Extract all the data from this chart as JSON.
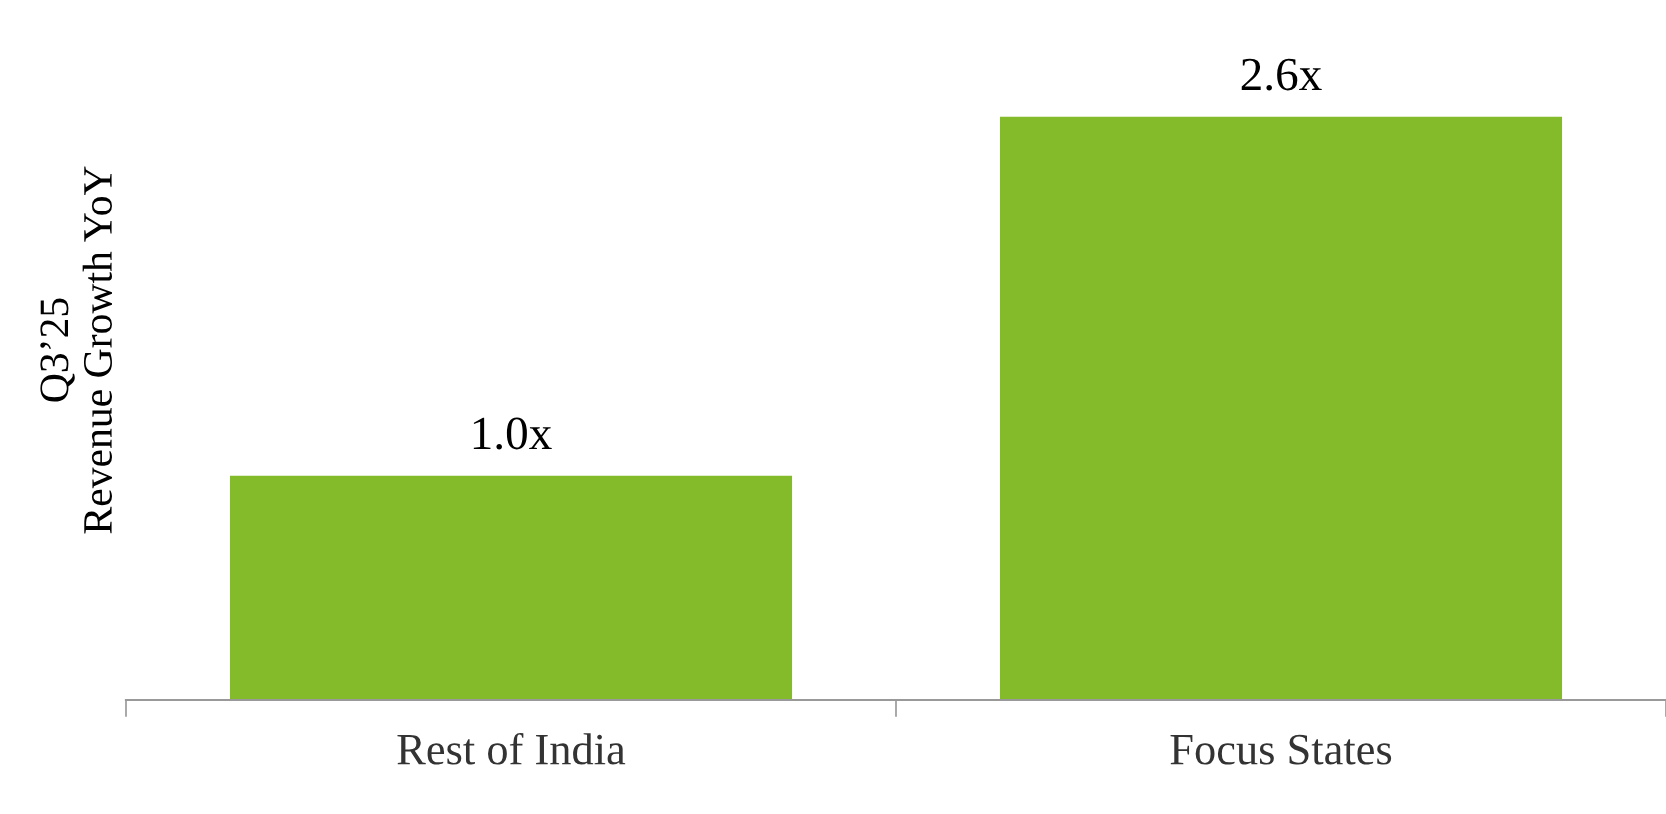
{
  "chart_data": {
    "type": "bar",
    "ylabel": "Q3’25\nRevenue Growth YoY",
    "categories": [
      "Rest of India",
      "Focus States"
    ],
    "values": [
      1.0,
      2.6
    ],
    "value_labels": [
      "1.0x",
      "2.6x"
    ],
    "color": "#84bb2a",
    "grid": false,
    "legend": false
  }
}
